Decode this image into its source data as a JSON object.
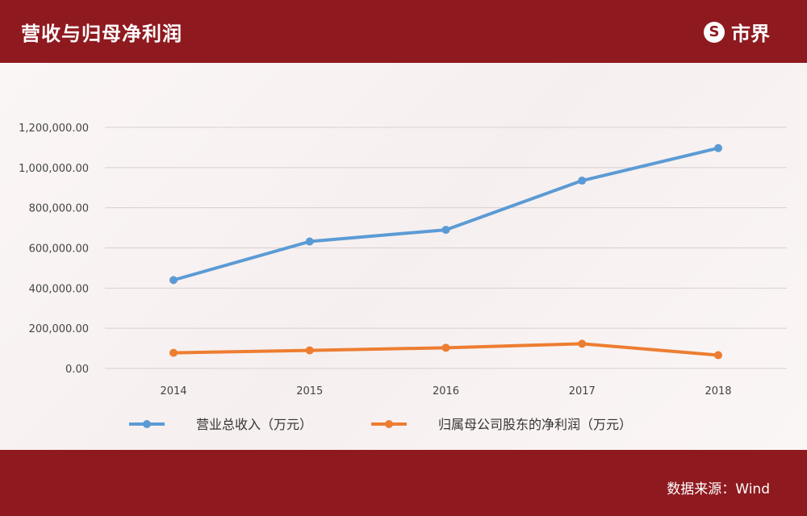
{
  "header": {
    "title": "营收与归母净利润",
    "brand_logo": "S",
    "brand_name": "市界"
  },
  "footer": {
    "source": "数据来源：Wind"
  },
  "chart_data": {
    "type": "line",
    "x": [
      "2014",
      "2015",
      "2016",
      "2017",
      "2018"
    ],
    "series": [
      {
        "name": "营业总收入（万元）",
        "color": "#5b9bd5",
        "values": [
          440000,
          632000,
          690000,
          935000,
          1097000
        ]
      },
      {
        "name": "归属母公司股东的净利润（万元）",
        "color": "#ed7d31",
        "values": [
          78000,
          90000,
          103000,
          123000,
          66000
        ]
      }
    ],
    "yticks": [
      "0.00",
      "200,000.00",
      "400,000.00",
      "600,000.00",
      "800,000.00",
      "1,000,000.00",
      "1,200,000.00"
    ],
    "ylim": [
      0,
      1200000
    ],
    "grid": true,
    "legend_position": "bottom"
  }
}
